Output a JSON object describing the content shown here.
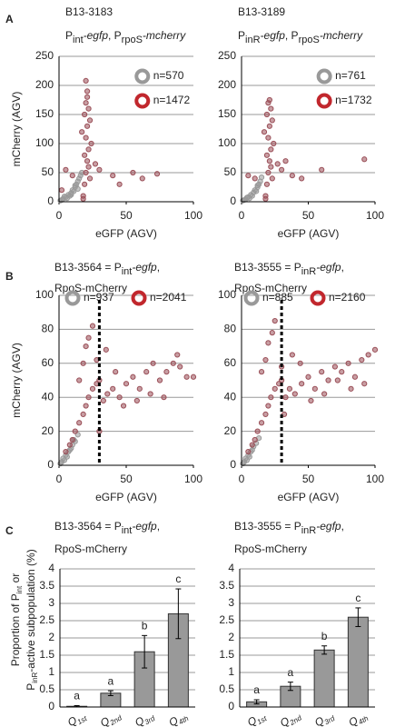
{
  "chart_data": [
    {
      "type": "scatter",
      "panel_label": "A",
      "title": [
        [
          {
            "text": "B13-3183"
          }
        ],
        [
          {
            "text": "P"
          },
          {
            "text": "int",
            "style": "sub"
          },
          {
            "text": "-egfp",
            "style": "italic"
          },
          {
            "text": ", P"
          },
          {
            "text": "rpoS",
            "style": "sub"
          },
          {
            "text": "-mcherry",
            "style": "italic"
          }
        ]
      ],
      "ylabel": "mCherry (AGV)",
      "xlabel": "eGFP (AGV)",
      "xlim": [
        0,
        100
      ],
      "xticks": [
        0,
        50,
        100
      ],
      "ylim": [
        0,
        250
      ],
      "yticks": [
        0,
        50,
        100,
        150,
        200,
        250
      ],
      "grid": true,
      "legend": "upper-right",
      "series": [
        {
          "name": "n=570",
          "color": "#999999",
          "legend_color": "#999999",
          "x": [
            1,
            3,
            5,
            7,
            9,
            10,
            12,
            13,
            14,
            15,
            16,
            11,
            8,
            6,
            2,
            4,
            17,
            12,
            14,
            9
          ],
          "values": [
            2,
            5,
            8,
            12,
            15,
            20,
            25,
            30,
            35,
            40,
            45,
            18,
            10,
            6,
            3,
            9,
            50,
            28,
            22,
            12
          ]
        },
        {
          "name": "n=1472",
          "color": "#9a4f58",
          "legend_color": "#c1272d",
          "x": [
            18,
            19,
            20,
            21,
            22,
            20,
            21,
            19,
            20,
            21,
            20,
            22,
            23,
            19,
            24,
            30,
            40,
            55,
            62,
            73,
            5,
            10,
            2,
            27,
            45,
            17,
            23,
            18,
            22,
            21
          ],
          "values": [
            10,
            30,
            50,
            70,
            90,
            110,
            130,
            150,
            170,
            190,
            208,
            60,
            40,
            80,
            100,
            55,
            45,
            50,
            40,
            48,
            55,
            45,
            20,
            65,
            30,
            120,
            140,
            5,
            160,
            180
          ]
        }
      ]
    },
    {
      "type": "scatter",
      "title": [
        [
          {
            "text": "B13-3189"
          }
        ],
        [
          {
            "text": "P"
          },
          {
            "text": "inR",
            "style": "sub"
          },
          {
            "text": "-egfp",
            "style": "italic"
          },
          {
            "text": ", P"
          },
          {
            "text": "rpoS",
            "style": "sub"
          },
          {
            "text": "-mcherry",
            "style": "italic"
          }
        ]
      ],
      "xlabel": "eGFP (AGV)",
      "xlim": [
        0,
        100
      ],
      "xticks": [
        0,
        50,
        100
      ],
      "ylim": [
        0,
        250
      ],
      "yticks": [
        0,
        50,
        100,
        150,
        200,
        250
      ],
      "grid": true,
      "legend": "upper-right",
      "series": [
        {
          "name": "n=761",
          "color": "#999999",
          "legend_color": "#999999",
          "x": [
            1,
            3,
            5,
            7,
            9,
            10,
            12,
            13,
            14,
            15,
            8,
            6,
            2,
            4,
            11,
            12
          ],
          "values": [
            2,
            4,
            8,
            12,
            16,
            20,
            25,
            30,
            35,
            42,
            10,
            6,
            3,
            7,
            18,
            28
          ]
        },
        {
          "name": "n=1732",
          "color": "#9a4f58",
          "legend_color": "#c1272d",
          "x": [
            18,
            19,
            20,
            21,
            22,
            20,
            21,
            19,
            20,
            21,
            22,
            23,
            19,
            24,
            30,
            38,
            45,
            60,
            92,
            5,
            10,
            27,
            17,
            23,
            18,
            22,
            33
          ],
          "values": [
            10,
            30,
            50,
            70,
            90,
            110,
            130,
            150,
            170,
            175,
            60,
            40,
            80,
            100,
            55,
            45,
            40,
            55,
            73,
            45,
            40,
            65,
            120,
            140,
            5,
            160,
            70
          ]
        }
      ]
    },
    {
      "type": "scatter",
      "panel_label": "B",
      "title": [
        [
          {
            "text": "B13-3564 = P"
          },
          {
            "text": "int",
            "style": "sub"
          },
          {
            "text": "-egfp",
            "style": "italic"
          },
          {
            "text": ","
          }
        ],
        [
          {
            "text": "RpoS-mCherry"
          }
        ]
      ],
      "ylabel": "mCherry (AGV)",
      "xlabel": "eGFP (AGV)",
      "xlim": [
        0,
        100
      ],
      "xticks": [
        0,
        50,
        100
      ],
      "ylim": [
        0,
        100
      ],
      "yticks": [
        0,
        20,
        40,
        60,
        80,
        100
      ],
      "grid": true,
      "legend": "top",
      "vline": 30,
      "series": [
        {
          "name": "n=937",
          "color": "#999999",
          "legend_color": "#999999",
          "x": [
            1,
            2,
            3,
            5,
            7,
            9,
            10,
            12,
            14,
            6,
            4,
            8,
            11
          ],
          "values": [
            1,
            2,
            4,
            6,
            8,
            10,
            12,
            14,
            18,
            5,
            3,
            9,
            15
          ]
        },
        {
          "name": "n=2041",
          "color": "#9a4f58",
          "legend_color": "#c1272d",
          "x": [
            5,
            8,
            10,
            12,
            15,
            18,
            20,
            22,
            25,
            28,
            30,
            33,
            36,
            40,
            45,
            50,
            55,
            60,
            65,
            70,
            75,
            80,
            85,
            90,
            95,
            100,
            20,
            22,
            25,
            18,
            28,
            35,
            42,
            48,
            58,
            68,
            78,
            88,
            15,
            30
          ],
          "values": [
            8,
            12,
            15,
            20,
            25,
            30,
            35,
            40,
            45,
            48,
            50,
            38,
            42,
            45,
            40,
            48,
            52,
            45,
            55,
            60,
            50,
            55,
            60,
            58,
            52,
            52,
            70,
            75,
            82,
            60,
            62,
            68,
            55,
            35,
            38,
            42,
            40,
            65,
            50,
            20
          ]
        }
      ]
    },
    {
      "type": "scatter",
      "title": [
        [
          {
            "text": "B13-3555 = P"
          },
          {
            "text": "inR",
            "style": "sub"
          },
          {
            "text": "-egfp",
            "style": "italic"
          },
          {
            "text": ","
          }
        ],
        [
          {
            "text": "RpoS-mCherry"
          }
        ]
      ],
      "xlabel": "eGFP (AGV)",
      "xlim": [
        0,
        100
      ],
      "xticks": [
        0,
        50,
        100
      ],
      "ylim": [
        0,
        100
      ],
      "yticks": [
        0,
        20,
        40,
        60,
        80,
        100
      ],
      "grid": true,
      "legend": "top",
      "vline": 30,
      "series": [
        {
          "name": "n=885",
          "color": "#999999",
          "legend_color": "#999999",
          "x": [
            1,
            2,
            3,
            5,
            7,
            9,
            11,
            13,
            6,
            4,
            8
          ],
          "values": [
            1,
            2,
            4,
            6,
            8,
            11,
            13,
            16,
            5,
            3,
            9
          ]
        },
        {
          "name": "n=2160",
          "color": "#9a4f58",
          "legend_color": "#c1272d",
          "x": [
            5,
            8,
            10,
            12,
            15,
            18,
            20,
            22,
            25,
            28,
            30,
            33,
            36,
            40,
            45,
            50,
            55,
            60,
            65,
            70,
            75,
            80,
            85,
            90,
            95,
            100,
            20,
            23,
            25,
            18,
            30,
            38,
            44,
            52,
            62,
            72,
            82,
            92,
            15,
            32
          ],
          "values": [
            8,
            12,
            15,
            20,
            25,
            30,
            35,
            40,
            45,
            48,
            50,
            40,
            45,
            42,
            48,
            52,
            45,
            55,
            50,
            58,
            55,
            60,
            52,
            62,
            65,
            68,
            72,
            78,
            85,
            62,
            58,
            65,
            60,
            38,
            42,
            50,
            45,
            48,
            55,
            30
          ]
        }
      ]
    },
    {
      "type": "bar",
      "panel_label": "C",
      "title": [
        [
          {
            "text": "B13-3564 = P"
          },
          {
            "text": "int",
            "style": "sub"
          },
          {
            "text": "-egfp",
            "style": "italic"
          },
          {
            "text": ","
          }
        ],
        [
          {
            "text": "RpoS-mCherry"
          }
        ]
      ],
      "ylabel_rich": [
        [
          {
            "text": "Proportion of P"
          },
          {
            "text": "int",
            "style": "sub"
          },
          {
            "text": " or"
          }
        ],
        [
          {
            "text": "P"
          },
          {
            "text": "inR",
            "style": "sub"
          },
          {
            "text": "-active subpopulation (%)"
          }
        ]
      ],
      "categories": [
        [
          {
            "text": "Q",
            "style": "italic"
          },
          {
            "text": "1st",
            "style": "italic-sub"
          }
        ],
        [
          {
            "text": "Q",
            "style": "italic"
          },
          {
            "text": "2nd",
            "style": "italic-sub"
          }
        ],
        [
          {
            "text": "Q",
            "style": "italic"
          },
          {
            "text": "3rd",
            "style": "italic-sub"
          }
        ],
        [
          {
            "text": "Q",
            "style": "italic"
          },
          {
            "text": "4th",
            "style": "italic-sub"
          }
        ]
      ],
      "values": [
        0.02,
        0.4,
        1.6,
        2.7
      ],
      "errors": [
        0.02,
        0.07,
        0.47,
        0.72
      ],
      "annotations": [
        "a",
        "a",
        "b",
        "c"
      ],
      "color": "#999999",
      "ylim": [
        0,
        4
      ],
      "yticks": [
        0,
        0.5,
        1,
        1.5,
        2,
        2.5,
        3,
        3.5,
        4
      ],
      "grid": true
    },
    {
      "type": "bar",
      "title": [
        [
          {
            "text": "B13-3555 = P"
          },
          {
            "text": "inR",
            "style": "sub"
          },
          {
            "text": "-egfp",
            "style": "italic"
          },
          {
            "text": ","
          }
        ],
        [
          {
            "text": "RpoS-mCherry"
          }
        ]
      ],
      "categories": [
        [
          {
            "text": "Q",
            "style": "italic"
          },
          {
            "text": "1st",
            "style": "italic-sub"
          }
        ],
        [
          {
            "text": "Q",
            "style": "italic"
          },
          {
            "text": "2nd",
            "style": "italic-sub"
          }
        ],
        [
          {
            "text": "Q",
            "style": "italic"
          },
          {
            "text": "3rd",
            "style": "italic-sub"
          }
        ],
        [
          {
            "text": "Q",
            "style": "italic"
          },
          {
            "text": "4th",
            "style": "italic-sub"
          }
        ]
      ],
      "values": [
        0.15,
        0.6,
        1.65,
        2.6
      ],
      "errors": [
        0.06,
        0.12,
        0.12,
        0.27
      ],
      "annotations": [
        "a",
        "a",
        "b",
        "c"
      ],
      "color": "#999999",
      "ylim": [
        0,
        4
      ],
      "yticks": [
        0,
        0.5,
        1,
        1.5,
        2,
        2.5,
        3,
        3.5,
        4
      ],
      "grid": true
    }
  ]
}
